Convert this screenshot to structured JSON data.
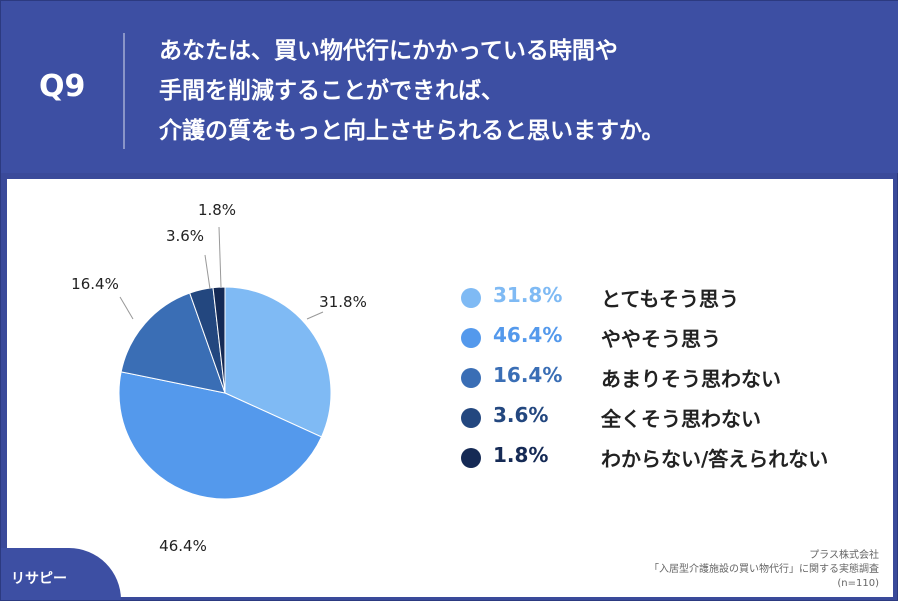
{
  "header": {
    "q_label": "Q9",
    "question_lines": [
      "あなたは、買い物代行にかかっている時間や",
      "手間を削減することができれば、",
      "介護の質をもっと向上させられると思いますか。"
    ]
  },
  "colors": {
    "header_bg": "#3d4fa3",
    "slice_1": "#7fbaf4",
    "slice_2": "#5499ec",
    "slice_3": "#3a6eb5",
    "slice_4": "#23477f",
    "slice_5": "#152a55"
  },
  "chart_data": {
    "type": "pie",
    "title": "",
    "categories": [
      "とてもそう思う",
      "ややそう思う",
      "あまりそう思わない",
      "全くそう思わない",
      "わからない/答えられない"
    ],
    "values": [
      31.8,
      46.4,
      16.4,
      3.6,
      1.8
    ],
    "value_labels": [
      "31.8%",
      "46.4%",
      "16.4%",
      "3.6%",
      "1.8%"
    ],
    "colors": [
      "#7fbaf4",
      "#5499ec",
      "#3a6eb5",
      "#23477f",
      "#152a55"
    ],
    "legend_position": "right"
  },
  "legend": [
    {
      "pct": "31.8%",
      "label": "とてもそう思う",
      "color": "#7fbaf4"
    },
    {
      "pct": "46.4%",
      "label": "ややそう思う",
      "color": "#5499ec"
    },
    {
      "pct": "16.4%",
      "label": "あまりそう思わない",
      "color": "#3a6eb5"
    },
    {
      "pct": "3.6%",
      "label": "全くそう思わない",
      "color": "#23477f"
    },
    {
      "pct": "1.8%",
      "label": "わからない/答えられない",
      "color": "#152a55"
    }
  ],
  "source": {
    "company": "プラス株式会社",
    "survey": "「入居型介護施設の買い物代行」に関する実態調査",
    "n": "(n=110)"
  },
  "logo": {
    "text": "リサピー"
  }
}
